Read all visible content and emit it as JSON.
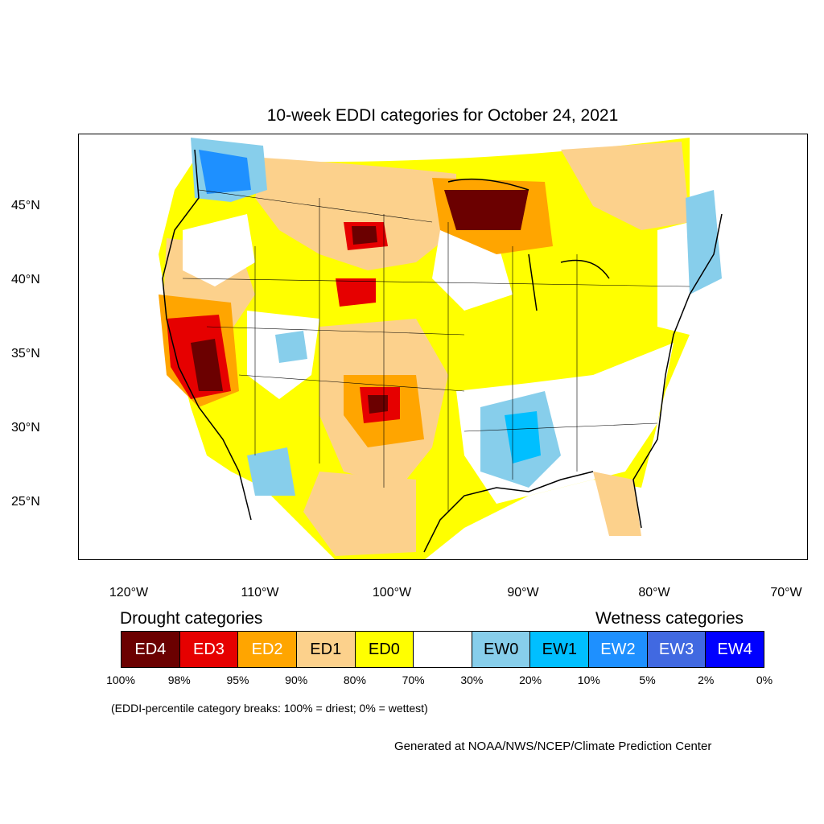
{
  "title": "10-week EDDI categories for October 24, 2021",
  "map": {
    "lat_labels": [
      "45°N",
      "40°N",
      "35°N",
      "30°N",
      "25°N"
    ],
    "lon_labels": [
      "120°W",
      "110°W",
      "100°W",
      "90°W",
      "80°W",
      "70°W"
    ],
    "lat_range": [
      21,
      50
    ],
    "lon_range": [
      -124,
      -68.5
    ],
    "colors": {
      "ED4": "#6b0000",
      "ED3": "#e60000",
      "ED2": "#ffa500",
      "ED1": "#fcd18c",
      "ED0": "#ffff00",
      "neutral": "#ffffff",
      "EW0": "#87ceeb",
      "EW1": "#00bfff",
      "EW2": "#1e90ff",
      "EW3": "#4169e1",
      "EW4": "#0000ff"
    }
  },
  "legend": {
    "drought_heading": "Drought categories",
    "wetness_heading": "Wetness categories",
    "categories": [
      {
        "label": "ED4",
        "color": "#6b0000",
        "text_color": "#ffffff"
      },
      {
        "label": "ED3",
        "color": "#e60000",
        "text_color": "#ffffff"
      },
      {
        "label": "ED2",
        "color": "#ffa500",
        "text_color": "#ffffff"
      },
      {
        "label": "ED1",
        "color": "#fcd18c",
        "text_color": "#000000"
      },
      {
        "label": "ED0",
        "color": "#ffff00",
        "text_color": "#000000"
      },
      {
        "label": "",
        "color": "#ffffff",
        "text_color": "#000000"
      },
      {
        "label": "EW0",
        "color": "#87ceeb",
        "text_color": "#000000"
      },
      {
        "label": "EW1",
        "color": "#00bfff",
        "text_color": "#000000"
      },
      {
        "label": "EW2",
        "color": "#1e90ff",
        "text_color": "#ffffff"
      },
      {
        "label": "EW3",
        "color": "#4169e1",
        "text_color": "#ffffff"
      },
      {
        "label": "EW4",
        "color": "#0000ff",
        "text_color": "#ffffff"
      }
    ],
    "percent_breaks": [
      "100%",
      "98%",
      "95%",
      "90%",
      "80%",
      "70%",
      "30%",
      "20%",
      "10%",
      "5%",
      "2%",
      "0%"
    ],
    "breaks_note": "(EDDI-percentile category breaks: 100% = driest; 0% = wettest)"
  },
  "credit": "Generated at NOAA/NWS/NCEP/Climate Prediction Center"
}
